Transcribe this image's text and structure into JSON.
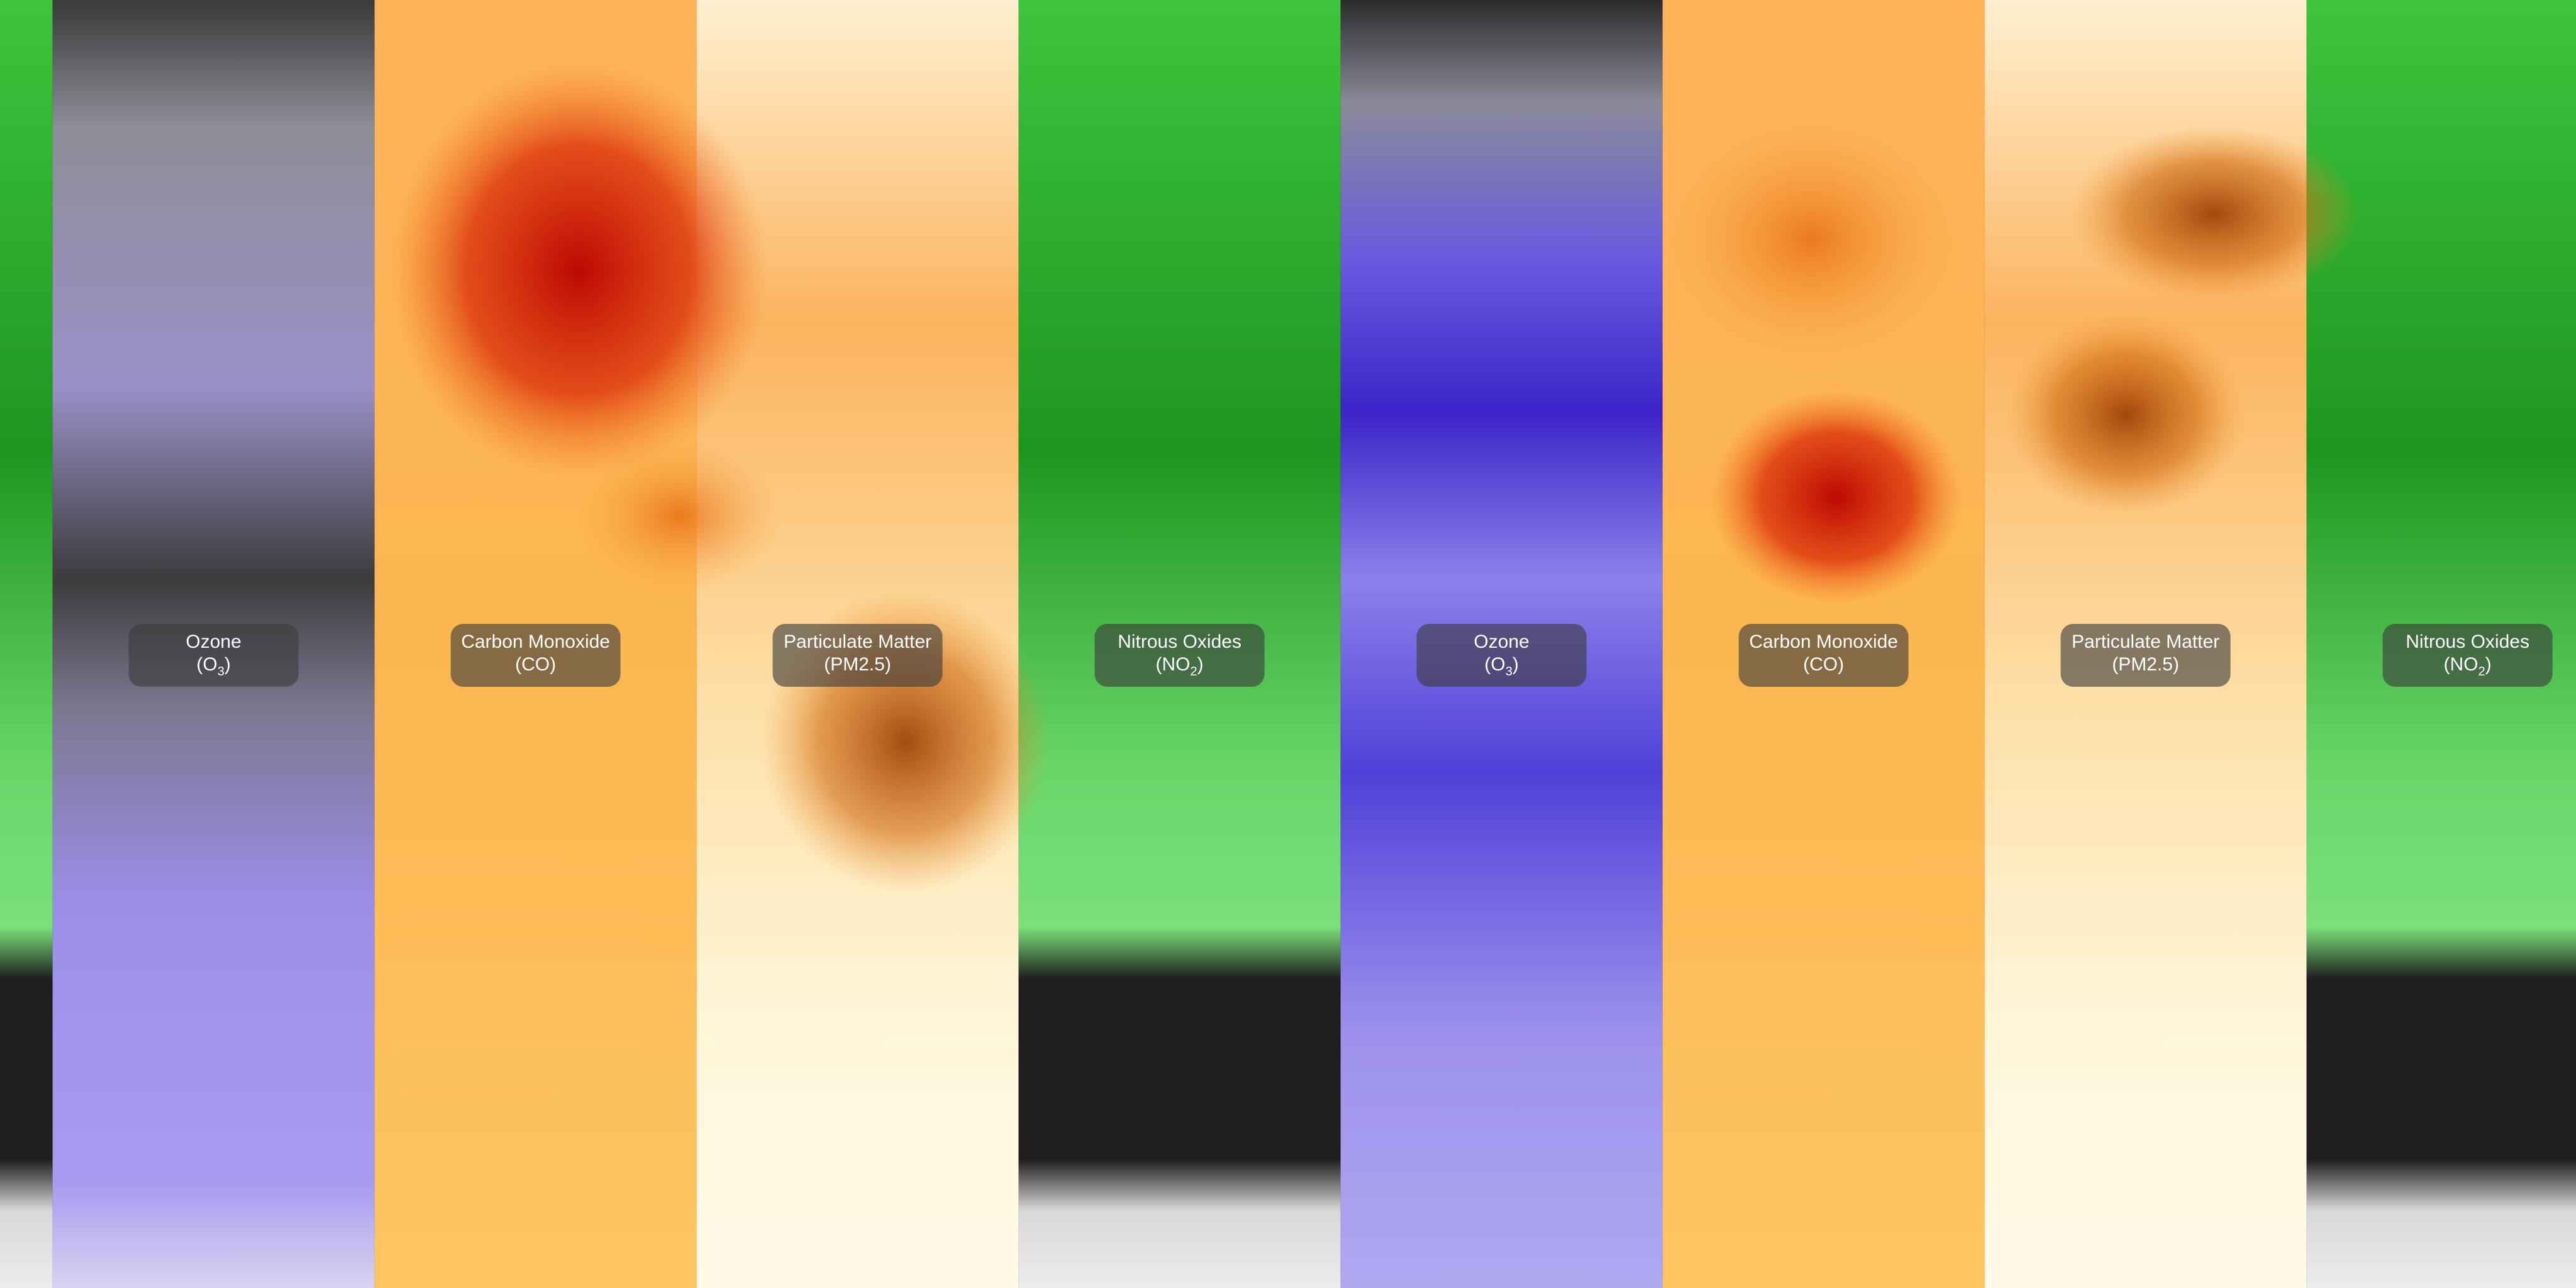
{
  "panels": [
    {
      "name": "Ozone",
      "formula": {
        "before": "(O",
        "sub": "3",
        "after": ")"
      }
    },
    {
      "name": "Carbon Monoxide",
      "formula": {
        "before": "(CO)"
      }
    },
    {
      "name": "Particulate Matter",
      "formula": {
        "before": "(PM2.5)"
      }
    },
    {
      "name": "Nitrous Oxides",
      "formula": {
        "before": "(NO",
        "sub": "2",
        "after": ")"
      }
    },
    {
      "name": "Ozone",
      "formula": {
        "before": "(O",
        "sub": "3",
        "after": ")"
      }
    },
    {
      "name": "Carbon Monoxide",
      "formula": {
        "before": "(CO)"
      }
    },
    {
      "name": "Particulate Matter",
      "formula": {
        "before": "(PM2.5)"
      }
    },
    {
      "name": "Nitrous Oxides",
      "formula": {
        "before": "(NO",
        "sub": "2",
        "after": ")"
      }
    }
  ]
}
